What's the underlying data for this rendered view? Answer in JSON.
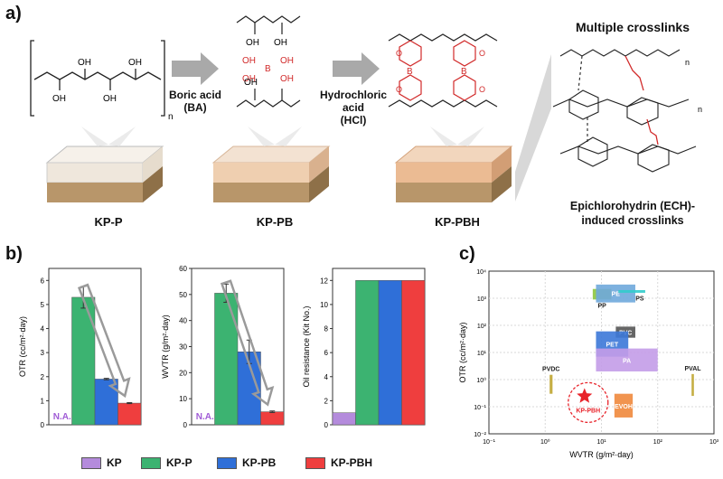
{
  "panel_a": {
    "letter": "a)",
    "arrow1_label": [
      "Boric acid",
      "(BA)"
    ],
    "arrow2_label": [
      "Hydrochloric",
      "acid",
      "(HCl)"
    ],
    "films": [
      "KP-P",
      "KP-PB",
      "KP-PBH"
    ],
    "multiple_crosslinks": "Multiple crosslinks",
    "ech_caption": [
      "Epichlorohydrin (ECH)-",
      "induced crosslinks"
    ],
    "structure_text": {
      "oh": "OH",
      "n": "n",
      "b": "B",
      "o": "O"
    }
  },
  "panel_b": {
    "letter": "b)",
    "na_label": "N.A.",
    "legend": [
      {
        "name": "KP",
        "color": "#b48bdc"
      },
      {
        "name": "KP-P",
        "color": "#3cb371"
      },
      {
        "name": "KP-PB",
        "color": "#2f6fd8"
      },
      {
        "name": "KP-PBH",
        "color": "#ef3e3e"
      }
    ]
  },
  "panel_c": {
    "letter": "c)"
  },
  "chart_data": [
    {
      "type": "bar",
      "ylabel": "OTR (cc/m²·day)",
      "ylim": [
        0,
        6.5
      ],
      "yticks": [
        0,
        1,
        2,
        3,
        4,
        5,
        6
      ],
      "categories": [
        "KP",
        "KP-P",
        "KP-PB",
        "KP-PBH"
      ],
      "values": [
        null,
        5.3,
        1.9,
        0.9
      ],
      "errors": [
        null,
        0.45,
        0.03,
        0.02
      ]
    },
    {
      "type": "bar",
      "ylabel": "WVTR (g/m²·day)",
      "ylim": [
        0,
        60
      ],
      "yticks": [
        0,
        10,
        20,
        30,
        40,
        50,
        60
      ],
      "categories": [
        "KP",
        "KP-P",
        "KP-PB",
        "KP-PBH"
      ],
      "values": [
        null,
        50.5,
        28,
        5
      ],
      "errors": [
        null,
        3.5,
        4.5,
        0.3
      ]
    },
    {
      "type": "bar",
      "ylabel": "Oil resistance (Kit No.)",
      "ylim": [
        0,
        13
      ],
      "yticks": [
        0,
        2,
        4,
        6,
        8,
        10,
        12
      ],
      "categories": [
        "KP",
        "KP-P",
        "KP-PB",
        "KP-PBH"
      ],
      "values": [
        1,
        12,
        12,
        12
      ],
      "errors": [
        null,
        null,
        null,
        null
      ]
    },
    {
      "type": "scatter",
      "xlabel": "WVTR (g/m²·day)",
      "ylabel": "OTR (cc/m²·day)",
      "log_x": true,
      "log_y": true,
      "xlim": [
        0.1,
        1000
      ],
      "ylim": [
        0.01,
        10000
      ],
      "xticks": [
        "10⁻¹",
        "10⁰",
        "10¹",
        "10²",
        "10³"
      ],
      "yticks": [
        "10⁻²",
        "10⁻¹",
        "10⁰",
        "10¹",
        "10²",
        "10³",
        "10⁴"
      ],
      "grid": true,
      "regions": [
        {
          "name": "PP",
          "x": [
            7,
            15
          ],
          "y": [
            900,
            2200
          ],
          "color": "#8cc63f"
        },
        {
          "name": "PE",
          "x": [
            8,
            40
          ],
          "y": [
            700,
            3200
          ],
          "color": "#6fa8dc"
        },
        {
          "name": "PS",
          "x": [
            20,
            60
          ],
          "y": [
            1800,
            2000
          ],
          "color": "#33cccc"
        },
        {
          "name": "PVC",
          "x": [
            18,
            40
          ],
          "y": [
            35,
            90
          ],
          "color": "#555555"
        },
        {
          "name": "PET",
          "x": [
            8,
            30
          ],
          "y": [
            7,
            60
          ],
          "color": "#3c78d8"
        },
        {
          "name": "PA",
          "x": [
            8,
            100
          ],
          "y": [
            2,
            14
          ],
          "color": "#c39ce8"
        },
        {
          "name": "PVDC",
          "x": [
            1.2,
            1.35
          ],
          "y": [
            0.3,
            1.5
          ],
          "color": "#bfa52f"
        },
        {
          "name": "PVAL",
          "x": [
            400,
            440
          ],
          "y": [
            0.25,
            1.6
          ],
          "color": "#bfa52f"
        },
        {
          "name": "EVOH",
          "x": [
            17,
            36
          ],
          "y": [
            0.04,
            0.3
          ],
          "color": "#f0883c"
        }
      ],
      "points": [
        {
          "name": "KP-PBH",
          "x": 5,
          "y": 0.9,
          "marker": "star",
          "color": "#e8232a"
        }
      ]
    }
  ]
}
